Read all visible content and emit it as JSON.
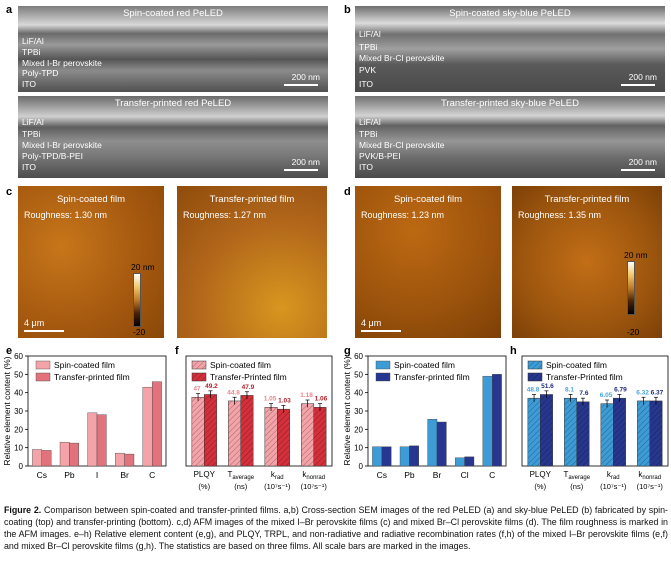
{
  "panel_letters": [
    "a",
    "b",
    "c",
    "d",
    "e",
    "f",
    "g",
    "h"
  ],
  "sem": [
    {
      "title": "Spin-coated red PeLED",
      "layers": [
        "LiF/Al",
        "TPBi",
        "Mixed I-Br perovskite",
        "Poly-TPD",
        "ITO"
      ],
      "scale": "200 nm"
    },
    {
      "title": "Spin-coated sky-blue PeLED",
      "layers": [
        "LiF/Al",
        "TPBi",
        "Mixed Br-Cl perovskite",
        "PVK",
        "ITO"
      ],
      "scale": "200 nm"
    },
    {
      "title": "Transfer-printed red PeLED",
      "layers": [
        "LiF/Al",
        "TPBi",
        "Mixed I-Br perovskite",
        "Poly-TPD/B-PEI",
        "ITO"
      ],
      "scale": "200 nm"
    },
    {
      "title": "Transfer-printed sky-blue PeLED",
      "layers": [
        "LiF/Al",
        "TPBi",
        "Mixed Br-Cl perovskite",
        "PVK/B-PEI",
        "ITO"
      ],
      "scale": "200 nm"
    }
  ],
  "afm": [
    {
      "title": "Spin-coated film",
      "roughness": "Roughness: 1.30 nm",
      "scale": "4 μm",
      "palette": "orange"
    },
    {
      "title": "Transfer-printed film",
      "roughness": "Roughness: 1.27 nm",
      "scale": "4 μm",
      "palette": "orange",
      "cbar_top": "20 nm",
      "cbar_bot": "-20"
    },
    {
      "title": "Spin-coated film",
      "roughness": "Roughness: 1.23 nm",
      "scale": "4 μm",
      "palette": "orange"
    },
    {
      "title": "Transfer-printed film",
      "roughness": "Roughness: 1.35 nm",
      "scale": "4 μm",
      "palette": "orange",
      "cbar_top": "20 nm",
      "cbar_bot": "-20"
    }
  ],
  "chart_data": [
    {
      "panel": "e",
      "type": "bar",
      "categories": [
        "Cs",
        "Pb",
        "I",
        "Br",
        "C"
      ],
      "series": [
        {
          "name": "Spin-coated film",
          "values": [
            9,
            13,
            29,
            7,
            43
          ],
          "color": "#f4a3a8"
        },
        {
          "name": "Transfer-printed film",
          "values": [
            8.5,
            12.5,
            28,
            6.5,
            46
          ],
          "color": "#e2737c"
        }
      ],
      "ylabel": "Relative element content (%)",
      "ylim": [
        0,
        60
      ],
      "yticks": [
        0,
        10,
        20,
        30,
        40,
        50,
        60
      ]
    },
    {
      "panel": "f",
      "type": "bar",
      "categories": [
        "PLQY\n(%)",
        "T_average\n(ns)",
        "k_rad\n(10^7 s^-1)",
        "k_nonrad\n(10^7 s^-1)"
      ],
      "xtick_main": [
        "PLQY",
        "T",
        "k",
        "k"
      ],
      "xtick_sub": [
        "",
        "average",
        "rad",
        "nonrad"
      ],
      "xtick_unit": [
        "(%)",
        "(ns)",
        "(10⁷s⁻¹)",
        "(10⁷s⁻¹)"
      ],
      "series": [
        {
          "name": "Spin-coated film",
          "values": [
            47,
            44.8,
            1.05,
            1.18
          ],
          "plot": [
            37.5,
            35.5,
            32,
            34
          ],
          "err": [
            2,
            2,
            2,
            2
          ],
          "color": "#f4a3a8",
          "labelcolor": "#e9868d"
        },
        {
          "name": "Transfer-Printed film",
          "values": [
            49.2,
            47.9,
            1.03,
            1.06
          ],
          "plot": [
            39,
            38.5,
            31,
            32
          ],
          "err": [
            2,
            2,
            2,
            2
          ],
          "color": "#d4303b",
          "labelcolor": "#b0202a"
        }
      ],
      "ylim": [
        0,
        60
      ]
    },
    {
      "panel": "g",
      "type": "bar",
      "categories": [
        "Cs",
        "Pb",
        "Br",
        "Cl",
        "C"
      ],
      "series": [
        {
          "name": "Spin-coated film",
          "values": [
            10.5,
            10.5,
            25.5,
            4.5,
            49
          ],
          "color": "#3d9bd6"
        },
        {
          "name": "Transfer-printed film",
          "values": [
            10.5,
            11,
            24,
            5,
            50
          ],
          "color": "#27368f"
        }
      ],
      "ylabel": "Relative element content (%)",
      "ylim": [
        0,
        60
      ],
      "yticks": [
        0,
        10,
        20,
        30,
        40,
        50,
        60
      ]
    },
    {
      "panel": "h",
      "type": "bar",
      "categories": [
        "PLQY\n(%)",
        "T_average\n(ns)",
        "k_rad\n(10^7 s^-1)",
        "k_nonrad\n(10^7 s^-1)"
      ],
      "xtick_main": [
        "PLQY",
        "T",
        "k",
        "k"
      ],
      "xtick_sub": [
        "",
        "average",
        "rad",
        "nonrad"
      ],
      "xtick_unit": [
        "(%)",
        "(ns)",
        "(10⁷s⁻¹)",
        "(10⁷s⁻¹)"
      ],
      "series": [
        {
          "name": "Spin-coated film",
          "values": [
            48.8,
            8.1,
            6.05,
            6.32
          ],
          "plot": [
            37,
            37,
            34,
            35.5
          ],
          "err": [
            2,
            2,
            2,
            2
          ],
          "color": "#3d9bd6",
          "labelcolor": "#4aa3dc"
        },
        {
          "name": "Transfer-Printed film",
          "values": [
            51.6,
            7.6,
            6.79,
            6.37
          ],
          "plot": [
            39,
            35,
            37,
            35.5
          ],
          "err": [
            2,
            2,
            2,
            2
          ],
          "color": "#27368f",
          "labelcolor": "#1d2a7a"
        }
      ],
      "ylim": [
        0,
        60
      ]
    }
  ],
  "caption": {
    "label": "Figure 2.",
    "text": " Comparison between spin-coated and transfer-printed films. a,b) Cross-section SEM images of the red PeLED (a) and sky-blue PeLED (b) fabricated by spin-coating (top) and transfer-printing (bottom). c,d) AFM images of the mixed I–Br perovskite films (c) and mixed Br–Cl perovskite films (d). The film roughness is marked in the AFM images. e–h) Relative element content (e,g), and PLQY, TRPL, and non-radiative and radiative recombination rates (f,h) of the mixed I–Br perovskite films (e,f) and mixed Br–Cl perovskite films (g,h). The statistics are based on three films. All scale bars are marked in the images."
  }
}
